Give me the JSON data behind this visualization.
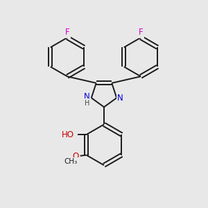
{
  "bg_color": "#e8e8e8",
  "bond_color": "#1a1a1a",
  "bond_width": 1.4,
  "atom_colors": {
    "F": "#cc00cc",
    "N": "#0000dd",
    "O": "#cc0000",
    "H": "#1a1a1a"
  },
  "font_size": 8.5,
  "fig_width": 3.0,
  "fig_height": 3.0,
  "dpi": 100
}
